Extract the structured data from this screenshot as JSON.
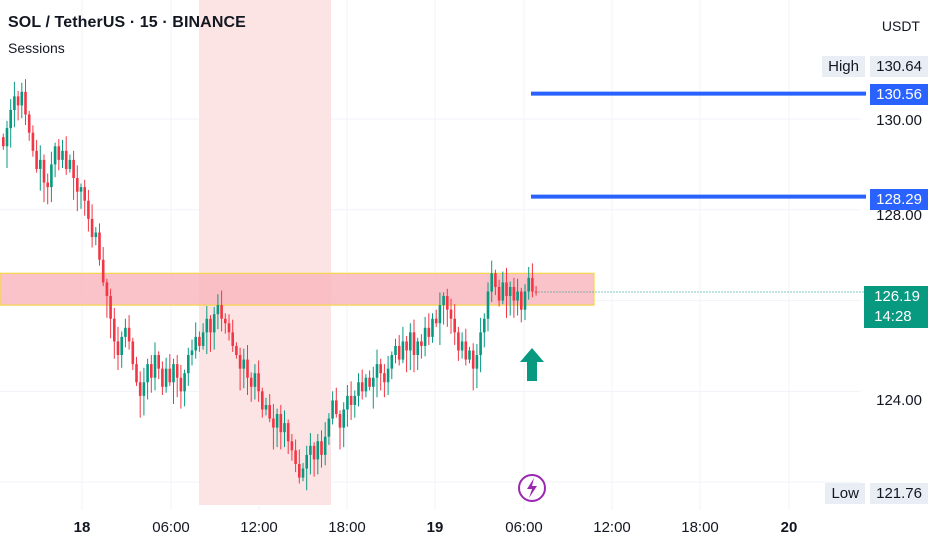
{
  "header": {
    "symbol": "SOL / TetherUS · 15 · BINANCE",
    "indicator": "Sessions"
  },
  "currency": "USDT",
  "price_axis": {
    "ticks": [
      {
        "value": 130.0,
        "label": "130.00"
      },
      {
        "value": 128.0,
        "label": "128.00"
      },
      {
        "value": 124.0,
        "label": "124.00"
      }
    ]
  },
  "time_axis": {
    "ticks": [
      {
        "label": "18",
        "bold": true
      },
      {
        "label": "06:00",
        "bold": false
      },
      {
        "label": "12:00",
        "bold": false
      },
      {
        "label": "18:00",
        "bold": false
      },
      {
        "label": "19",
        "bold": true
      },
      {
        "label": "06:00",
        "bold": false
      },
      {
        "label": "12:00",
        "bold": false
      },
      {
        "label": "18:00",
        "bold": false
      },
      {
        "label": "20",
        "bold": true
      }
    ]
  },
  "high": {
    "label": "High",
    "value": "130.64"
  },
  "low": {
    "label": "Low",
    "value": "121.76"
  },
  "price_lines": [
    {
      "value": 130.56,
      "label": "130.56"
    },
    {
      "value": 128.29,
      "label": "128.29"
    }
  ],
  "current_price": {
    "value": "126.19",
    "countdown": "14:28"
  },
  "colors": {
    "bullish": "#089981",
    "bearish": "#f23645",
    "session_band": "#fde4e4",
    "zone_fill": "#f9b8c0",
    "zone_border": "#f5d547",
    "price_line": "#2962ff",
    "arrow": "#089981",
    "bolt": "#9c27b0"
  },
  "icons": {
    "arrow": "up-arrow-icon",
    "event": "lightning-icon"
  },
  "chart_data": {
    "type": "candlestick",
    "timeframe": "15",
    "ylim": [
      121.5,
      131.2
    ],
    "zone": {
      "low": 125.9,
      "high": 126.6
    },
    "closes": [
      129.4,
      129.8,
      130.2,
      130.5,
      130.3,
      130.6,
      130.1,
      129.7,
      129.3,
      128.9,
      129.1,
      128.6,
      128.5,
      129.0,
      129.4,
      129.1,
      129.3,
      128.9,
      129.1,
      128.7,
      128.4,
      128.5,
      128.2,
      127.8,
      127.4,
      127.5,
      126.9,
      126.4,
      126.1,
      125.6,
      125.1,
      124.8,
      125.2,
      125.4,
      125.1,
      124.6,
      124.2,
      123.9,
      124.2,
      124.6,
      124.3,
      124.8,
      124.5,
      124.1,
      124.5,
      124.2,
      124.6,
      124.3,
      124.0,
      124.4,
      124.8,
      124.9,
      125.2,
      125.0,
      125.3,
      125.6,
      125.3,
      125.7,
      125.9,
      125.6,
      125.5,
      125.3,
      125.0,
      124.8,
      124.5,
      124.7,
      124.3,
      124.1,
      124.4,
      124.0,
      123.6,
      123.7,
      123.4,
      123.2,
      123.5,
      123.1,
      123.3,
      122.9,
      122.7,
      122.4,
      122.1,
      122.3,
      122.6,
      122.8,
      122.5,
      122.9,
      122.6,
      123.0,
      123.4,
      123.8,
      123.5,
      123.2,
      123.6,
      123.9,
      123.7,
      123.9,
      124.2,
      124.0,
      124.3,
      124.1,
      124.3,
      124.6,
      124.4,
      124.2,
      124.5,
      124.8,
      125.0,
      124.7,
      125.1,
      124.9,
      125.3,
      124.8,
      125.1,
      125.0,
      125.4,
      125.2,
      125.6,
      125.5,
      125.9,
      126.1,
      125.8,
      125.6,
      125.3,
      124.9,
      125.1,
      124.7,
      124.9,
      124.5,
      124.8,
      125.3,
      125.6,
      126.2,
      126.6,
      126.3,
      126.0,
      126.4,
      126.1,
      126.3,
      126.0,
      126.2,
      125.8,
      126.2,
      126.5,
      126.2,
      126.19
    ]
  }
}
